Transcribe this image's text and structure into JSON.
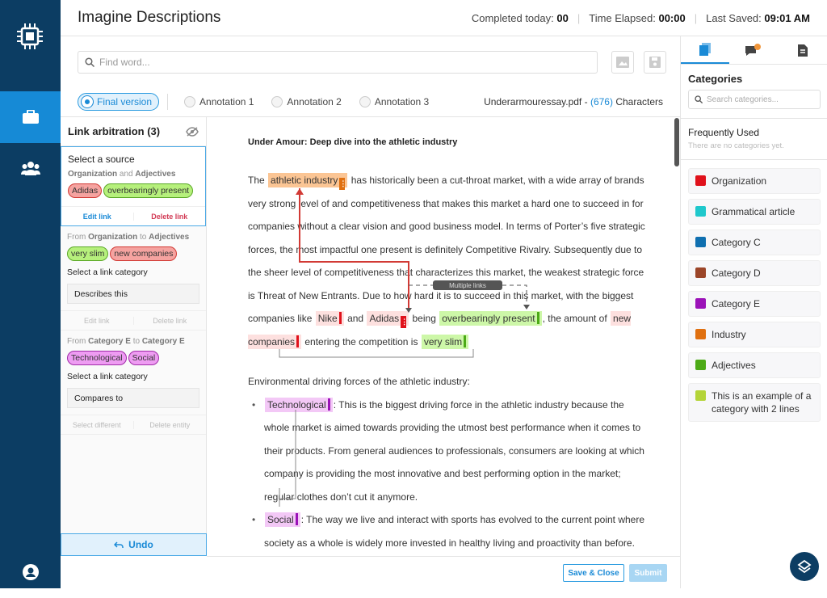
{
  "app": {
    "title": "Imagine Descriptions"
  },
  "header": {
    "completed_label": "Completed today:",
    "completed_value": "00",
    "elapsed_label": "Time Elapsed:",
    "elapsed_value": "00:00",
    "saved_label": "Last Saved:",
    "saved_value": "09:01 AM"
  },
  "nav": {
    "items": [
      {
        "icon": "briefcase-icon",
        "active": true
      },
      {
        "icon": "users-icon"
      },
      {
        "icon": "user-account-icon"
      }
    ]
  },
  "toolbar": {
    "search_placeholder": "Find word..."
  },
  "versions": {
    "tabs": [
      {
        "label": "Final version",
        "active": true
      },
      {
        "label": "Annotation 1"
      },
      {
        "label": "Annotation 2"
      },
      {
        "label": "Annotation 3"
      }
    ],
    "file": "Underarmouressay.pdf",
    "dash": "-",
    "count": "(676)",
    "count_suffix": "Characters"
  },
  "left_panel": {
    "title": "Link arbitration (3)",
    "cards": [
      {
        "title": "Select a source",
        "from": "Organization",
        "mid": "and",
        "to": "Adjectives",
        "pills": [
          "Adidas",
          "overbearingly present"
        ],
        "actions": [
          "Edit link",
          "Delete link"
        ]
      },
      {
        "pre": "From",
        "from": "Organization",
        "mid": "to",
        "to": "Adjectives",
        "pills": [
          "very slim",
          "new companies"
        ],
        "select_label": "Select a link category",
        "select_value": "Describes this",
        "actions": [
          "Edit link",
          "Delete link"
        ]
      },
      {
        "pre": "From",
        "from": "Category E",
        "mid": "to",
        "to": "Category E",
        "pills": [
          "Technological",
          "Social"
        ],
        "select_label": "Select a link category",
        "select_value": "Compares to",
        "actions": [
          "Select different",
          "Delete entity"
        ]
      }
    ],
    "undo_label": "Undo"
  },
  "document": {
    "heading": "Under Amour: Deep dive into the athletic industry",
    "p1": {
      "t0": "The",
      "a1": "athletic industry",
      "t1": "has historically been a cut-throat market, with a wide array of brands very strong level of and competitiveness that makes this market a hard one to succeed in for companies without a clear vision and good business model. In terms of Porter’s five strategic forces, the most impactful one present is definitely Competitive Rivalry. Subsequently due to the sheer level of competitiveness that characterizes this market, the weakest strategic force is Threat of New Entrants. Due to how hard it is to succeed in this market, with the biggest companies like",
      "a2": "Nike",
      "t2": "and",
      "a3": "Adidas",
      "t3": "being",
      "a4": "overbearingly present",
      "t4": ", the amount of",
      "a5": "new companies",
      "t5": "entering the competition is",
      "a6": "very slim"
    },
    "multiple_links_label": "Multiple links",
    "p2": "Environmental driving forces of the athletic industry:",
    "bullets": [
      {
        "tag": "Technological",
        "text": ": This is the biggest driving force in the athletic industry because the whole market is aimed towards providing the utmost best performance when it comes to their products. From general audiences to professionals, consumers are looking at which company is providing the most innovative and best performing option in the market; regular clothes don’t cut it anymore."
      },
      {
        "tag": "Social",
        "text": ": The way we live and interact with sports has evolved to the current point where society as a whole is widely more invested in healthy living and proactivity than before."
      }
    ]
  },
  "footer": {
    "save_close": "Save & Close",
    "submit": "Submit"
  },
  "right_panel": {
    "tabs": [
      "categories-icon",
      "comments-icon",
      "document-icon"
    ],
    "title": "Categories",
    "search_placeholder": "Search categories...",
    "freq_title": "Frequently Used",
    "freq_empty": "There are no categories yet.",
    "categories": [
      {
        "name": "Organization",
        "color": "#e0111b"
      },
      {
        "name": "Grammatical article",
        "color": "#1fc8cc"
      },
      {
        "name": "Category C",
        "color": "#0f6fb0"
      },
      {
        "name": "Category D",
        "color": "#9b4528"
      },
      {
        "name": "Category E",
        "color": "#9b12b8"
      },
      {
        "name": "Industry",
        "color": "#e07010"
      },
      {
        "name": "Adjectives",
        "color": "#4caa16"
      },
      {
        "name": "This is an example of a category with 2 lines",
        "color": "#b4d438"
      }
    ]
  },
  "colors": {
    "nav": "#0c3d63",
    "accent": "#1a8ad6",
    "organization": "#e0111b",
    "adjectives": "#4caa16",
    "industry": "#e07010",
    "category_e": "#9b12b8"
  }
}
